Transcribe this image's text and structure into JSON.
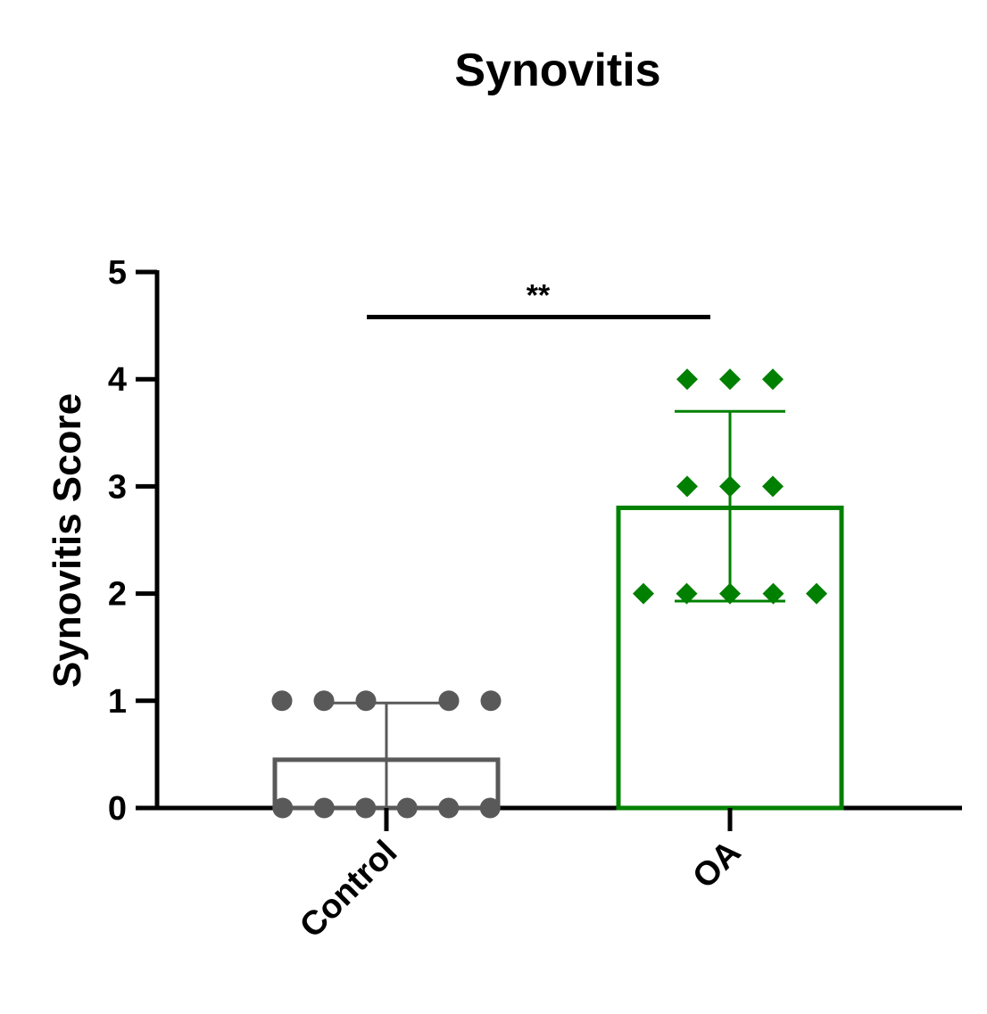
{
  "chart_data": {
    "type": "bar",
    "title": "Synovitis",
    "xlabel": "",
    "ylabel": "Synovitis Score",
    "ylim": [
      0,
      5
    ],
    "yticks": [
      0,
      1,
      2,
      3,
      4,
      5
    ],
    "categories": [
      "Control",
      "OA"
    ],
    "series": [
      {
        "category": "Control",
        "mean": 0.45,
        "sd_upper": 0.98,
        "sd_lower": 0,
        "color": "#595959",
        "marker": "circle",
        "points": [
          0,
          0,
          0,
          0,
          0,
          0,
          1,
          1,
          1,
          1,
          1
        ]
      },
      {
        "category": "OA",
        "mean": 2.8,
        "sd_upper": 3.7,
        "sd_lower": 1.93,
        "color": "#008000",
        "marker": "diamond",
        "points": [
          2,
          2,
          2,
          2,
          2,
          3,
          3,
          3,
          4,
          4,
          4
        ]
      }
    ],
    "annotations": [
      {
        "text": "**",
        "between": [
          "Control",
          "OA"
        ],
        "y": 4.58
      }
    ],
    "grid": false,
    "legend": "none"
  }
}
